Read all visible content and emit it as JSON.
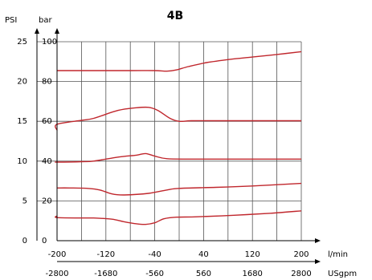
{
  "chart_data": {
    "type": "line",
    "title": "4B",
    "y_axes": [
      {
        "label": "PSI",
        "ticks": [
          0,
          5,
          10,
          15,
          20,
          25
        ],
        "range": [
          0,
          25
        ]
      },
      {
        "label": "bar",
        "ticks": [
          0,
          20,
          40,
          60,
          80,
          100
        ],
        "range": [
          0,
          100
        ]
      }
    ],
    "x_axes": [
      {
        "label": "l/min",
        "ticks": [
          -200,
          -120,
          -40,
          40,
          120,
          200
        ],
        "range": [
          -200,
          200
        ]
      },
      {
        "label": "USgpm",
        "ticks": [
          -2800,
          -1680,
          -560,
          560,
          1680,
          2800
        ],
        "range": [
          -2800,
          2800
        ]
      }
    ],
    "grid": true,
    "line_color": "#c0272d",
    "series": [
      {
        "points": [
          [
            -235,
            85.5
          ],
          [
            -160,
            85.5
          ],
          [
            -80,
            85.5
          ],
          [
            -40,
            85.5
          ],
          [
            -20,
            85.2
          ],
          [
            -5,
            85.8
          ],
          [
            15,
            87.5
          ],
          [
            45,
            89.5
          ],
          [
            85,
            91.2
          ],
          [
            120,
            92.3
          ],
          [
            160,
            93.6
          ],
          [
            200,
            95.0
          ]
        ]
      },
      {
        "points": [
          [
            -235,
            55.5
          ],
          [
            -200,
            58.5
          ],
          [
            -160,
            60.5
          ],
          [
            -140,
            61.5
          ],
          [
            -100,
            65.5
          ],
          [
            -70,
            66.8
          ],
          [
            -50,
            67.0
          ],
          [
            -35,
            65.5
          ],
          [
            -15,
            61.5
          ],
          [
            0,
            60.0
          ],
          [
            20,
            60.3
          ],
          [
            60,
            60.3
          ],
          [
            120,
            60.3
          ],
          [
            200,
            60.3
          ]
        ]
      },
      {
        "points": [
          [
            -235,
            39.5
          ],
          [
            -200,
            39.5
          ],
          [
            -160,
            39.7
          ],
          [
            -140,
            40.0
          ],
          [
            -100,
            42.0
          ],
          [
            -70,
            43.0
          ],
          [
            -55,
            43.8
          ],
          [
            -40,
            42.5
          ],
          [
            -20,
            41.2
          ],
          [
            20,
            41.0
          ],
          [
            120,
            41.0
          ],
          [
            200,
            41.0
          ]
        ]
      },
      {
        "points": [
          [
            -235,
            26.5
          ],
          [
            -180,
            26.5
          ],
          [
            -150,
            26.3
          ],
          [
            -130,
            25.5
          ],
          [
            -110,
            23.5
          ],
          [
            -90,
            23.0
          ],
          [
            -50,
            23.8
          ],
          [
            -20,
            25.5
          ],
          [
            0,
            26.3
          ],
          [
            60,
            26.8
          ],
          [
            120,
            27.5
          ],
          [
            200,
            28.8
          ]
        ]
      },
      {
        "points": [
          [
            -235,
            12.5
          ],
          [
            -200,
            11.6
          ],
          [
            -160,
            11.4
          ],
          [
            -140,
            11.4
          ],
          [
            -110,
            10.8
          ],
          [
            -90,
            9.5
          ],
          [
            -70,
            8.5
          ],
          [
            -55,
            8.2
          ],
          [
            -40,
            9.0
          ],
          [
            -25,
            11.0
          ],
          [
            -5,
            11.8
          ],
          [
            30,
            12.0
          ],
          [
            90,
            12.8
          ],
          [
            150,
            13.8
          ],
          [
            200,
            15.0
          ]
        ]
      }
    ]
  }
}
